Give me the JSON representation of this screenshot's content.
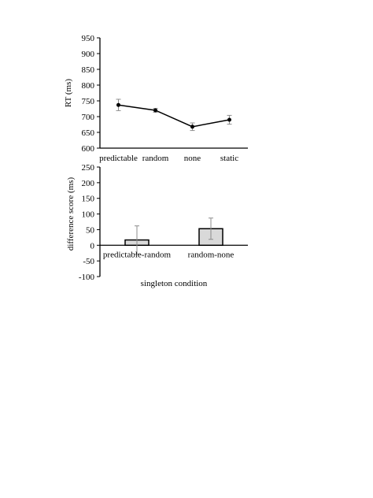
{
  "chart_data": [
    {
      "type": "line",
      "title": "",
      "xlabel": "",
      "ylabel": "RT (ms)",
      "ylim": [
        600,
        950
      ],
      "yticks": [
        600,
        650,
        700,
        750,
        800,
        850,
        900,
        950
      ],
      "categories": [
        "predictable",
        "random",
        "none",
        "static"
      ],
      "series": [
        {
          "values": [
            737,
            720,
            668,
            690
          ],
          "errors": [
            18,
            6,
            12,
            14
          ],
          "color": "#000000"
        }
      ],
      "grid": false,
      "legend": "none"
    },
    {
      "type": "bar",
      "title": "",
      "xlabel": "singleton condition",
      "ylabel": "difference score (ms)",
      "ylim": [
        -100,
        250
      ],
      "yticks": [
        -100,
        -50,
        0,
        50,
        100,
        150,
        200,
        250
      ],
      "categories": [
        "predictable-random",
        "random-none"
      ],
      "series": [
        {
          "values": [
            17,
            53
          ],
          "errors": [
            45,
            34
          ],
          "color": "#d9d9d9"
        }
      ],
      "grid": false,
      "legend": "none"
    }
  ]
}
